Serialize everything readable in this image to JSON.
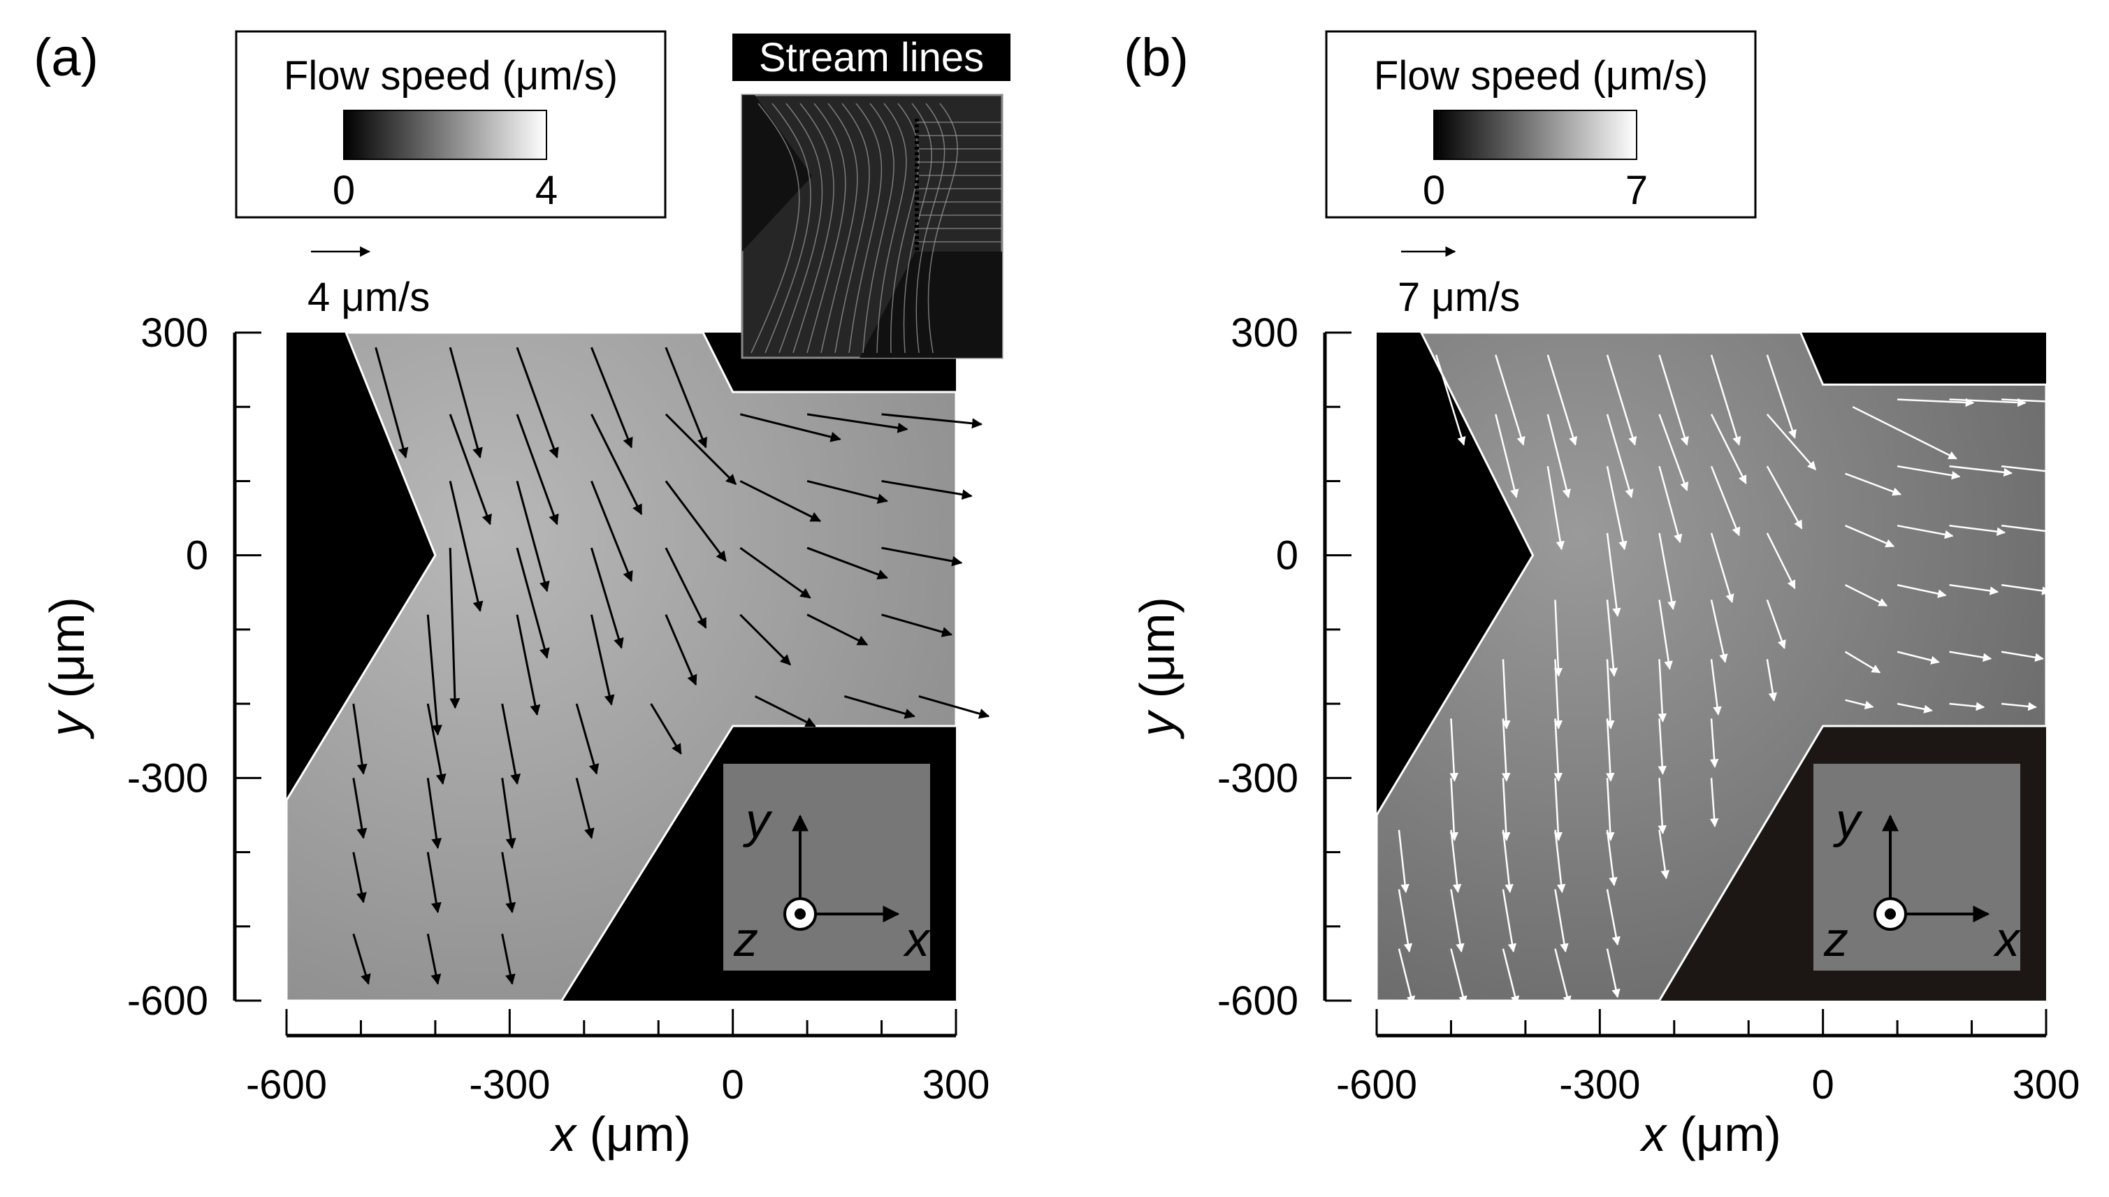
{
  "panels": [
    {
      "label": "(a)",
      "colorbar": {
        "title": "Flow speed (μm/s)",
        "min": "0",
        "max": "4",
        "min_value": 0,
        "max_value": 4
      },
      "scale_arrow": {
        "label": "4 μm/s",
        "value": 4
      },
      "stream_lines_inset": {
        "title": "Stream lines"
      },
      "arrow_color": "#000000",
      "field_color": "#8e8e8e",
      "corner_color": "#000000",
      "axes_inset": {
        "y": "y",
        "x": "x",
        "z": "z"
      }
    },
    {
      "label": "(b)",
      "colorbar": {
        "title": "Flow speed (μm/s)",
        "min": "0",
        "max": "7",
        "min_value": 0,
        "max_value": 7
      },
      "scale_arrow": {
        "label": "7 μm/s",
        "value": 7
      },
      "arrow_color": "#ffffff",
      "field_color": "#6a6a6a",
      "corner_color": "#1c1714",
      "axes_inset": {
        "y": "y",
        "x": "x",
        "z": "z"
      }
    }
  ],
  "chart_data": [
    {
      "type": "vector-field",
      "panel": "(a)",
      "xlabel_var": "x",
      "xlabel_unit": " (μm)",
      "ylabel_var": "y",
      "ylabel_unit": " (μm)",
      "xlim": [
        -600,
        300
      ],
      "ylim": [
        -600,
        300
      ],
      "xticks": [
        -600,
        -300,
        0,
        300
      ],
      "yticks": [
        300,
        0,
        -300,
        -600
      ],
      "xtick_labels": [
        "-600",
        "-300",
        "0",
        "300"
      ],
      "ytick_labels": [
        "300",
        "0",
        "-300",
        "-600"
      ],
      "channel_boundary": [
        [
          -520,
          300
        ],
        [
          -400,
          0
        ],
        [
          -600,
          -330
        ],
        [
          -600,
          -600
        ],
        [
          -230,
          -600
        ],
        [
          0,
          -230
        ],
        [
          300,
          -230
        ],
        [
          300,
          220
        ],
        [
          0,
          220
        ],
        [
          -40,
          300
        ]
      ],
      "vectors": [
        {
          "x": -480,
          "y": 280,
          "u": 0.6,
          "v": -2.2
        },
        {
          "x": -380,
          "y": 280,
          "u": 0.6,
          "v": -2.2
        },
        {
          "x": -290,
          "y": 280,
          "u": 0.8,
          "v": -2.2
        },
        {
          "x": -190,
          "y": 280,
          "u": 0.8,
          "v": -2.0
        },
        {
          "x": -90,
          "y": 280,
          "u": 0.8,
          "v": -2.0
        },
        {
          "x": -480,
          "y": 190,
          "u": 0.8,
          "v": -2.2
        },
        {
          "x": -380,
          "y": 190,
          "u": 0.8,
          "v": -2.2
        },
        {
          "x": -290,
          "y": 190,
          "u": 0.8,
          "v": -2.2
        },
        {
          "x": -190,
          "y": 190,
          "u": 1.0,
          "v": -2.0
        },
        {
          "x": -90,
          "y": 190,
          "u": 1.4,
          "v": -1.4
        },
        {
          "x": 10,
          "y": 190,
          "u": 2.0,
          "v": -0.5
        },
        {
          "x": 100,
          "y": 190,
          "u": 2.0,
          "v": -0.3
        },
        {
          "x": 200,
          "y": 190,
          "u": 2.0,
          "v": -0.2
        },
        {
          "x": -380,
          "y": 100,
          "u": 0.6,
          "v": -2.6
        },
        {
          "x": -290,
          "y": 100,
          "u": 0.6,
          "v": -2.2
        },
        {
          "x": -190,
          "y": 100,
          "u": 0.8,
          "v": -2.0
        },
        {
          "x": -90,
          "y": 100,
          "u": 1.2,
          "v": -1.6
        },
        {
          "x": 10,
          "y": 100,
          "u": 1.6,
          "v": -0.8
        },
        {
          "x": 100,
          "y": 100,
          "u": 1.6,
          "v": -0.4
        },
        {
          "x": 200,
          "y": 100,
          "u": 1.8,
          "v": -0.3
        },
        {
          "x": -380,
          "y": 10,
          "u": 0.1,
          "v": -3.2
        },
        {
          "x": -290,
          "y": 10,
          "u": 0.6,
          "v": -2.2
        },
        {
          "x": -190,
          "y": 10,
          "u": 0.6,
          "v": -2.0
        },
        {
          "x": -90,
          "y": 10,
          "u": 0.8,
          "v": -1.6
        },
        {
          "x": 10,
          "y": 10,
          "u": 1.4,
          "v": -1.0
        },
        {
          "x": 100,
          "y": 10,
          "u": 1.6,
          "v": -0.6
        },
        {
          "x": 200,
          "y": 10,
          "u": 1.6,
          "v": -0.3
        },
        {
          "x": -410,
          "y": -80,
          "u": 0.2,
          "v": -2.4
        },
        {
          "x": -290,
          "y": -80,
          "u": 0.4,
          "v": -2.0
        },
        {
          "x": -190,
          "y": -80,
          "u": 0.4,
          "v": -1.8
        },
        {
          "x": -90,
          "y": -80,
          "u": 0.6,
          "v": -1.4
        },
        {
          "x": 10,
          "y": -80,
          "u": 1.0,
          "v": -1.0
        },
        {
          "x": 100,
          "y": -80,
          "u": 1.2,
          "v": -0.6
        },
        {
          "x": 200,
          "y": -80,
          "u": 1.4,
          "v": -0.4
        },
        {
          "x": -510,
          "y": -200,
          "u": 0.2,
          "v": -1.4
        },
        {
          "x": -410,
          "y": -200,
          "u": 0.3,
          "v": -1.6
        },
        {
          "x": -310,
          "y": -200,
          "u": 0.3,
          "v": -1.6
        },
        {
          "x": -210,
          "y": -200,
          "u": 0.4,
          "v": -1.4
        },
        {
          "x": -110,
          "y": -200,
          "u": 0.6,
          "v": -1.0
        },
        {
          "x": 30,
          "y": -190,
          "u": 1.2,
          "v": -0.6
        },
        {
          "x": 150,
          "y": -190,
          "u": 1.4,
          "v": -0.4
        },
        {
          "x": 250,
          "y": -190,
          "u": 1.4,
          "v": -0.4
        },
        {
          "x": -510,
          "y": -300,
          "u": 0.2,
          "v": -1.2
        },
        {
          "x": -410,
          "y": -300,
          "u": 0.2,
          "v": -1.4
        },
        {
          "x": -310,
          "y": -300,
          "u": 0.2,
          "v": -1.4
        },
        {
          "x": -210,
          "y": -300,
          "u": 0.3,
          "v": -1.2
        },
        {
          "x": -510,
          "y": -400,
          "u": 0.2,
          "v": -1.0
        },
        {
          "x": -410,
          "y": -400,
          "u": 0.2,
          "v": -1.2
        },
        {
          "x": -310,
          "y": -400,
          "u": 0.2,
          "v": -1.2
        },
        {
          "x": -510,
          "y": -510,
          "u": 0.3,
          "v": -1.0
        },
        {
          "x": -410,
          "y": -510,
          "u": 0.2,
          "v": -1.0
        },
        {
          "x": -310,
          "y": -510,
          "u": 0.2,
          "v": -1.0
        }
      ]
    },
    {
      "type": "vector-field",
      "panel": "(b)",
      "xlabel_var": "x",
      "xlabel_unit": " (μm)",
      "ylabel_var": "y",
      "ylabel_unit": " (μm)",
      "xlim": [
        -600,
        300
      ],
      "ylim": [
        -600,
        300
      ],
      "xticks": [
        -600,
        -300,
        0,
        300
      ],
      "yticks": [
        300,
        0,
        -300,
        -600
      ],
      "xtick_labels": [
        "-600",
        "-300",
        "0",
        "300"
      ],
      "ytick_labels": [
        "300",
        "0",
        "-300",
        "-600"
      ],
      "channel_boundary": [
        [
          -540,
          300
        ],
        [
          -390,
          0
        ],
        [
          -600,
          -350
        ],
        [
          -600,
          -600
        ],
        [
          -220,
          -600
        ],
        [
          0,
          -230
        ],
        [
          300,
          -230
        ],
        [
          300,
          230
        ],
        [
          0,
          230
        ],
        [
          -30,
          300
        ]
      ],
      "vectors": [
        {
          "x": -520,
          "y": 270,
          "u": 0.8,
          "v": -2.6
        },
        {
          "x": -440,
          "y": 270,
          "u": 0.8,
          "v": -2.6
        },
        {
          "x": -370,
          "y": 270,
          "u": 0.8,
          "v": -2.6
        },
        {
          "x": -290,
          "y": 270,
          "u": 0.8,
          "v": -2.6
        },
        {
          "x": -220,
          "y": 270,
          "u": 0.8,
          "v": -2.6
        },
        {
          "x": -150,
          "y": 270,
          "u": 0.8,
          "v": -2.6
        },
        {
          "x": -75,
          "y": 270,
          "u": 0.8,
          "v": -2.4
        },
        {
          "x": -440,
          "y": 190,
          "u": 0.6,
          "v": -2.4
        },
        {
          "x": -370,
          "y": 190,
          "u": 0.6,
          "v": -2.4
        },
        {
          "x": -290,
          "y": 190,
          "u": 0.7,
          "v": -2.4
        },
        {
          "x": -220,
          "y": 190,
          "u": 0.8,
          "v": -2.2
        },
        {
          "x": -150,
          "y": 190,
          "u": 1.0,
          "v": -2.0
        },
        {
          "x": -75,
          "y": 190,
          "u": 1.4,
          "v": -1.6
        },
        {
          "x": 40,
          "y": 200,
          "u": 3.0,
          "v": -1.5
        },
        {
          "x": 100,
          "y": 210,
          "u": 2.2,
          "v": -0.1
        },
        {
          "x": 170,
          "y": 210,
          "u": 2.2,
          "v": -0.1
        },
        {
          "x": 240,
          "y": 210,
          "u": 2.2,
          "v": -0.1
        },
        {
          "x": -370,
          "y": 120,
          "u": 0.4,
          "v": -2.4
        },
        {
          "x": -290,
          "y": 120,
          "u": 0.5,
          "v": -2.4
        },
        {
          "x": -220,
          "y": 120,
          "u": 0.6,
          "v": -2.2
        },
        {
          "x": -150,
          "y": 120,
          "u": 0.8,
          "v": -2.0
        },
        {
          "x": -75,
          "y": 120,
          "u": 1.0,
          "v": -1.8
        },
        {
          "x": 30,
          "y": 110,
          "u": 1.6,
          "v": -0.6
        },
        {
          "x": 100,
          "y": 120,
          "u": 1.8,
          "v": -0.3
        },
        {
          "x": 170,
          "y": 120,
          "u": 1.8,
          "v": -0.2
        },
        {
          "x": 240,
          "y": 120,
          "u": 1.8,
          "v": -0.2
        },
        {
          "x": -290,
          "y": 30,
          "u": 0.3,
          "v": -2.4
        },
        {
          "x": -220,
          "y": 30,
          "u": 0.4,
          "v": -2.2
        },
        {
          "x": -150,
          "y": 30,
          "u": 0.6,
          "v": -2.0
        },
        {
          "x": -75,
          "y": 30,
          "u": 0.8,
          "v": -1.6
        },
        {
          "x": 30,
          "y": 40,
          "u": 1.4,
          "v": -0.6
        },
        {
          "x": 100,
          "y": 40,
          "u": 1.6,
          "v": -0.3
        },
        {
          "x": 170,
          "y": 40,
          "u": 1.6,
          "v": -0.2
        },
        {
          "x": 240,
          "y": 40,
          "u": 1.6,
          "v": -0.2
        },
        {
          "x": -360,
          "y": -60,
          "u": 0.1,
          "v": -2.2
        },
        {
          "x": -290,
          "y": -60,
          "u": 0.2,
          "v": -2.2
        },
        {
          "x": -220,
          "y": -60,
          "u": 0.3,
          "v": -2.0
        },
        {
          "x": -150,
          "y": -60,
          "u": 0.4,
          "v": -1.8
        },
        {
          "x": -75,
          "y": -60,
          "u": 0.5,
          "v": -1.4
        },
        {
          "x": 30,
          "y": -40,
          "u": 1.2,
          "v": -0.6
        },
        {
          "x": 100,
          "y": -40,
          "u": 1.4,
          "v": -0.3
        },
        {
          "x": 170,
          "y": -40,
          "u": 1.4,
          "v": -0.2
        },
        {
          "x": 240,
          "y": -40,
          "u": 1.4,
          "v": -0.2
        },
        {
          "x": -430,
          "y": -140,
          "u": 0.1,
          "v": -2.0
        },
        {
          "x": -360,
          "y": -140,
          "u": 0.1,
          "v": -2.0
        },
        {
          "x": -290,
          "y": -140,
          "u": 0.1,
          "v": -2.0
        },
        {
          "x": -220,
          "y": -140,
          "u": 0.1,
          "v": -1.8
        },
        {
          "x": -150,
          "y": -140,
          "u": 0.2,
          "v": -1.6
        },
        {
          "x": -75,
          "y": -140,
          "u": 0.2,
          "v": -1.2
        },
        {
          "x": 30,
          "y": -130,
          "u": 1.0,
          "v": -0.6
        },
        {
          "x": 100,
          "y": -130,
          "u": 1.2,
          "v": -0.3
        },
        {
          "x": 170,
          "y": -130,
          "u": 1.2,
          "v": -0.2
        },
        {
          "x": 240,
          "y": -130,
          "u": 1.2,
          "v": -0.2
        },
        {
          "x": -500,
          "y": -220,
          "u": 0.1,
          "v": -1.8
        },
        {
          "x": -430,
          "y": -220,
          "u": 0.1,
          "v": -1.8
        },
        {
          "x": -360,
          "y": -220,
          "u": 0.1,
          "v": -1.8
        },
        {
          "x": -290,
          "y": -220,
          "u": 0.1,
          "v": -1.8
        },
        {
          "x": -220,
          "y": -220,
          "u": 0.1,
          "v": -1.6
        },
        {
          "x": -150,
          "y": -220,
          "u": 0.1,
          "v": -1.4
        },
        {
          "x": 30,
          "y": -195,
          "u": 0.8,
          "v": -0.2
        },
        {
          "x": 100,
          "y": -200,
          "u": 1.0,
          "v": -0.2
        },
        {
          "x": 170,
          "y": -200,
          "u": 1.0,
          "v": -0.1
        },
        {
          "x": 240,
          "y": -200,
          "u": 1.0,
          "v": -0.1
        },
        {
          "x": -500,
          "y": -300,
          "u": 0.1,
          "v": -1.8
        },
        {
          "x": -430,
          "y": -300,
          "u": 0.1,
          "v": -1.8
        },
        {
          "x": -360,
          "y": -300,
          "u": 0.1,
          "v": -1.8
        },
        {
          "x": -290,
          "y": -300,
          "u": 0.1,
          "v": -1.8
        },
        {
          "x": -220,
          "y": -300,
          "u": 0.1,
          "v": -1.6
        },
        {
          "x": -150,
          "y": -300,
          "u": 0.1,
          "v": -1.4
        },
        {
          "x": -570,
          "y": -370,
          "u": 0.2,
          "v": -1.8
        },
        {
          "x": -500,
          "y": -370,
          "u": 0.2,
          "v": -1.8
        },
        {
          "x": -430,
          "y": -370,
          "u": 0.2,
          "v": -1.8
        },
        {
          "x": -360,
          "y": -370,
          "u": 0.2,
          "v": -1.8
        },
        {
          "x": -290,
          "y": -370,
          "u": 0.2,
          "v": -1.6
        },
        {
          "x": -220,
          "y": -370,
          "u": 0.2,
          "v": -1.4
        },
        {
          "x": -570,
          "y": -450,
          "u": 0.3,
          "v": -1.8
        },
        {
          "x": -500,
          "y": -450,
          "u": 0.3,
          "v": -1.8
        },
        {
          "x": -430,
          "y": -450,
          "u": 0.3,
          "v": -1.8
        },
        {
          "x": -360,
          "y": -450,
          "u": 0.3,
          "v": -1.8
        },
        {
          "x": -290,
          "y": -450,
          "u": 0.3,
          "v": -1.6
        },
        {
          "x": -570,
          "y": -530,
          "u": 0.4,
          "v": -1.6
        },
        {
          "x": -500,
          "y": -530,
          "u": 0.4,
          "v": -1.6
        },
        {
          "x": -430,
          "y": -530,
          "u": 0.4,
          "v": -1.6
        },
        {
          "x": -360,
          "y": -530,
          "u": 0.4,
          "v": -1.6
        },
        {
          "x": -290,
          "y": -530,
          "u": 0.3,
          "v": -1.4
        }
      ]
    }
  ]
}
